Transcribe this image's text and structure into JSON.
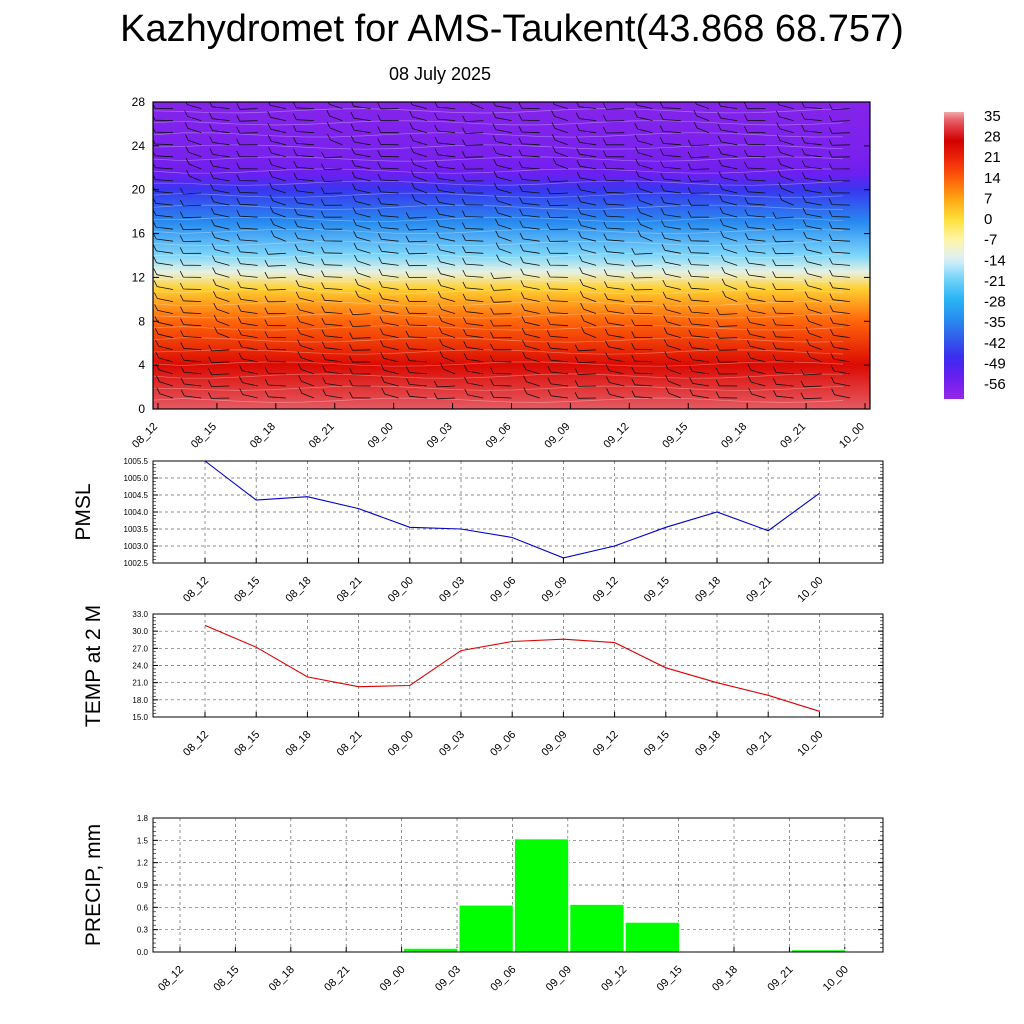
{
  "title": "Kazhydromet for AMS-Taukent(43.868 68.757)",
  "subtitle": "08 July 2025",
  "time_labels": [
    "08_12",
    "08_15",
    "08_18",
    "08_21",
    "09_00",
    "09_03",
    "09_06",
    "09_09",
    "09_12",
    "09_15",
    "09_18",
    "09_21",
    "10_00"
  ],
  "colorbar": {
    "labels": [
      "35",
      "28",
      "21",
      "14",
      "7",
      "0",
      "-7",
      "-14",
      "-21",
      "-28",
      "-35",
      "-42",
      "-49",
      "-56"
    ],
    "range": [
      -63,
      38
    ]
  },
  "chart_data": [
    {
      "type": "heatmap",
      "title": "",
      "ylabel": "",
      "y_ticks": [
        "0",
        "4",
        "8",
        "12",
        "16",
        "20",
        "24",
        "28"
      ],
      "ylim": [
        0,
        28
      ],
      "x": [
        "08_12",
        "08_15",
        "08_18",
        "08_21",
        "09_00",
        "09_03",
        "09_06",
        "09_09",
        "09_12",
        "09_15",
        "09_18",
        "09_21",
        "10_00"
      ],
      "temperature_profile": [
        {
          "level": 0,
          "temp": 35
        },
        {
          "level": 4,
          "temp": 26
        },
        {
          "level": 8,
          "temp": 14
        },
        {
          "level": 11,
          "temp": 2
        },
        {
          "level": 12.5,
          "temp": -12
        },
        {
          "level": 14,
          "temp": -20
        },
        {
          "level": 17,
          "temp": -35
        },
        {
          "level": 20,
          "temp": -47
        },
        {
          "level": 21.5,
          "temp": -56
        },
        {
          "level": 23,
          "temp": -58
        },
        {
          "level": 28,
          "temp": -60
        }
      ],
      "overlay": "wind barbs"
    },
    {
      "type": "line",
      "ylabel": "PMSL",
      "ylim": [
        1002.5,
        1005.5
      ],
      "y_ticks": [
        "1002.5",
        "1003.0",
        "1003.5",
        "1004.0",
        "1004.5",
        "1005.0",
        "1005.5"
      ],
      "x": [
        "08_12",
        "08_15",
        "08_18",
        "08_21",
        "09_00",
        "09_03",
        "09_06",
        "09_09",
        "09_12",
        "09_15",
        "09_18",
        "09_21",
        "10_00"
      ],
      "series": [
        {
          "values": [
            1005.5,
            1004.35,
            1004.45,
            1004.1,
            1003.55,
            1003.5,
            1003.25,
            1002.65,
            1003.0,
            1003.55,
            1004.0,
            1003.45,
            1004.55
          ],
          "color": "#0000cc"
        }
      ],
      "grid": true
    },
    {
      "type": "line",
      "ylabel": "TEMP at 2 M",
      "ylim": [
        15.0,
        33.0
      ],
      "y_ticks": [
        "15.0",
        "18.0",
        "21.0",
        "24.0",
        "27.0",
        "30.0",
        "33.0"
      ],
      "x": [
        "08_12",
        "08_15",
        "08_18",
        "08_21",
        "09_00",
        "09_03",
        "09_06",
        "09_09",
        "09_12",
        "09_15",
        "09_18",
        "09_21",
        "10_00"
      ],
      "series": [
        {
          "values": [
            31.0,
            27.2,
            22.0,
            20.3,
            20.5,
            26.6,
            28.2,
            28.6,
            28.0,
            23.6,
            21.0,
            18.8,
            16.0
          ],
          "color": "#dd0000"
        }
      ],
      "grid": true
    },
    {
      "type": "bar",
      "ylabel": "PRECIP, mm",
      "ylim": [
        0.0,
        1.8
      ],
      "y_ticks": [
        "0.0",
        "0.3",
        "0.6",
        "0.9",
        "1.2",
        "1.5",
        "1.8"
      ],
      "categories": [
        "08_12",
        "08_15",
        "08_18",
        "08_21",
        "09_00",
        "09_03",
        "09_06",
        "09_09",
        "09_12",
        "09_15",
        "09_18",
        "09_21",
        "10_00"
      ],
      "values": [
        0,
        0,
        0,
        0,
        0.05,
        0.63,
        1.52,
        0.64,
        0.4,
        0,
        0,
        0.03,
        0
      ],
      "color": "#00ff00",
      "grid": true
    }
  ]
}
